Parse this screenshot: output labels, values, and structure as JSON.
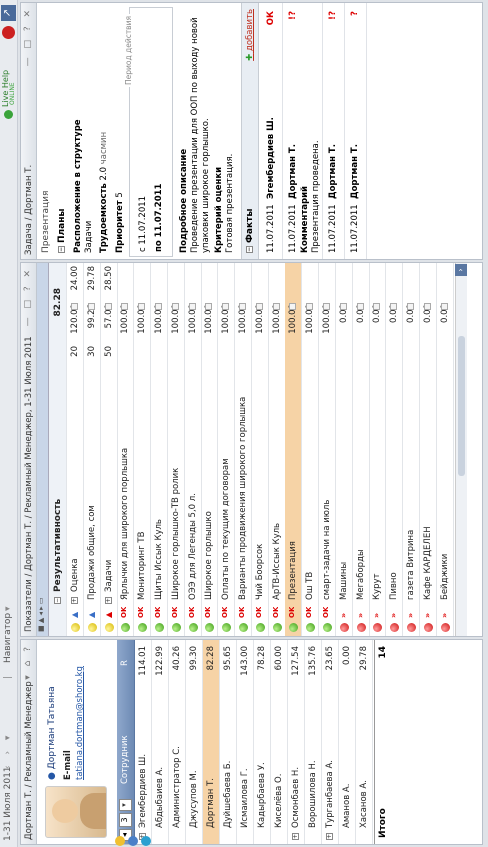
{
  "topbar": {
    "date_range": "1-31 Июля 2011",
    "nav_label": "Навигатор",
    "live_help_1": "Live Help",
    "live_help_2": "ONLINE"
  },
  "left_panel": {
    "title": "Дортман Т. / Рекламный Менеджер",
    "profile_name": "Дортман Татьяна",
    "email_label": "E-mail",
    "email": "tatiana.dortman@shoro.kg",
    "page_selector": "3",
    "col_employee": "Сотрудник",
    "col_r": "R",
    "employees": [
      {
        "name": "Эгембердиев Ш.",
        "value": "114.01",
        "exp": true
      },
      {
        "name": "Абдыбаиев А.",
        "value": "122.99",
        "exp": false
      },
      {
        "name": "Администратор С.",
        "value": "40.26",
        "exp": false
      },
      {
        "name": "Джусупов М.",
        "value": "99.30",
        "exp": false
      },
      {
        "name": "Дортман Т.",
        "value": "82.28",
        "exp": false,
        "selected": true
      },
      {
        "name": "Дуйшебаева Б.",
        "value": "95.65",
        "exp": false
      },
      {
        "name": "Исмаилова Г.",
        "value": "143.00",
        "exp": false
      },
      {
        "name": "Кадырбаева У.",
        "value": "78.28",
        "exp": false
      },
      {
        "name": "Киселёва О.",
        "value": "60.00",
        "exp": false
      },
      {
        "name": "Осмонбаев Н.",
        "value": "127.54",
        "exp": true
      },
      {
        "name": "Ворошилова Н.",
        "value": "135.76",
        "exp": false
      },
      {
        "name": "Турганбаева А.",
        "value": "23.65",
        "exp": true
      },
      {
        "name": "Аманов А.",
        "value": "0.00",
        "exp": false
      },
      {
        "name": "Хасанов А.",
        "value": "29.78",
        "exp": false
      }
    ],
    "total_label": "Итого",
    "total_value": "14"
  },
  "middle_panel": {
    "title": "Показатели / Дортман Т. / Рекламный Менеджер, 1-31 Июля 2011",
    "col_result": "Результативность",
    "col_total": "82.28",
    "rows": [
      {
        "dot": "y",
        "mark": "flag",
        "name": "Оценка",
        "n": "20",
        "v": "120.00",
        "w": "24.00",
        "exp": true
      },
      {
        "dot": "y",
        "mark": "flag",
        "name": "Продажи общие, сом",
        "n": "30",
        "v": "99.26",
        "w": "29.78",
        "exp": false
      },
      {
        "dot": "y",
        "mark": "flagr",
        "name": "Задачи",
        "n": "50",
        "v": "57.00",
        "w": "28.50",
        "exp": true
      },
      {
        "dot": "g",
        "mark": "ok",
        "name": "Ярлычки для широкого порльшка",
        "n": "",
        "v": "100.00",
        "w": "",
        "exp": false
      },
      {
        "dot": "g",
        "mark": "ok",
        "name": "Мониторинг ТВ",
        "n": "",
        "v": "100.00",
        "w": "",
        "exp": false
      },
      {
        "dot": "g",
        "mark": "ok",
        "name": "Щиты Иссык Куль",
        "n": "",
        "v": "100.00",
        "w": "",
        "exp": false
      },
      {
        "dot": "g",
        "mark": "ok",
        "name": "Широкое горлышко-ТВ ролик",
        "n": "",
        "v": "100.00",
        "w": "",
        "exp": false
      },
      {
        "dot": "g",
        "mark": "ok",
        "name": "ОЭЭ для Легенды 5,0 л.",
        "n": "",
        "v": "100.00",
        "w": "",
        "exp": false
      },
      {
        "dot": "g",
        "mark": "ok",
        "name": "Широкое горлышко",
        "n": "",
        "v": "100.00",
        "w": "",
        "exp": false
      },
      {
        "dot": "g",
        "mark": "ok",
        "name": "Оплаты по текущим договорам",
        "n": "",
        "v": "100.00",
        "w": "",
        "exp": false
      },
      {
        "dot": "g",
        "mark": "ok",
        "name": "Варианты продвижения широкого горлышка",
        "n": "",
        "v": "100.00",
        "w": "",
        "exp": false
      },
      {
        "dot": "g",
        "mark": "ok",
        "name": "Чий Боорсок",
        "n": "",
        "v": "100.00",
        "w": "",
        "exp": false
      },
      {
        "dot": "g",
        "mark": "ok",
        "name": "АрТВ-Иссык Куль",
        "n": "",
        "v": "100.00",
        "w": "",
        "exp": false
      },
      {
        "dot": "g",
        "mark": "ok",
        "name": "Презентация",
        "n": "",
        "v": "100.00",
        "w": "",
        "exp": false,
        "selected": true
      },
      {
        "dot": "g",
        "mark": "ok",
        "name": "Ош ТВ",
        "n": "",
        "v": "100.00",
        "w": "",
        "exp": false
      },
      {
        "dot": "g",
        "mark": "ok",
        "name": "смарт-задачи на июль",
        "n": "",
        "v": "100.00",
        "w": "",
        "exp": false
      },
      {
        "dot": "r",
        "mark": "ch",
        "name": "Машины",
        "n": "",
        "v": "0.00",
        "w": "",
        "exp": false
      },
      {
        "dot": "r",
        "mark": "ch",
        "name": "Мегаборды",
        "n": "",
        "v": "0.00",
        "w": "",
        "exp": false
      },
      {
        "dot": "r",
        "mark": "ch",
        "name": "Курут",
        "n": "",
        "v": "0.00",
        "w": "",
        "exp": false
      },
      {
        "dot": "r",
        "mark": "ch",
        "name": "Пивно",
        "n": "",
        "v": "0.00",
        "w": "",
        "exp": false
      },
      {
        "dot": "r",
        "mark": "ch",
        "name": "газета Витрина",
        "n": "",
        "v": "0.00",
        "w": "",
        "exp": false
      },
      {
        "dot": "r",
        "mark": "ch",
        "name": "Кафе КАРДЕЛЕН",
        "n": "",
        "v": "0.00",
        "w": "",
        "exp": false
      },
      {
        "dot": "r",
        "mark": "ch",
        "name": "Бейджики",
        "n": "",
        "v": "0.00",
        "w": "",
        "exp": false
      }
    ]
  },
  "right_panel": {
    "title": "Задача / Дортман Т.",
    "header": "Презентация",
    "plans": "Планы",
    "location_label": "Расположение в структуре",
    "location_value": "Задачи",
    "labor_label": "Трудоемкость",
    "labor_value": "2.0",
    "labor_unit": "чaсмин",
    "priority_label": "Приоритет",
    "priority_value": "5",
    "period_label": "Период действия",
    "date_from": "с 11.07.2011",
    "date_to": "по 11.07.2011",
    "desc_label": "Подробное описание",
    "desc_text": "Проведение презентации для ООП по выходу новой упаковки широкое горлышко.",
    "criteria_label": "Критерий оценки",
    "criteria_text": "Готовая презентация.",
    "facts_label": "Факты",
    "add_label": "добавить",
    "facts": [
      {
        "date": "11.07.2011",
        "person": "Эгембердиев Ш.",
        "mark": "ОК",
        "comment_label": "",
        "comment": ""
      },
      {
        "date": "11.07.2011",
        "person": "Дортман Т.",
        "mark": "!?",
        "comment_label": "Комментарий",
        "comment": "Презентация проведена."
      },
      {
        "date": "11.07.2011",
        "person": "Дортман Т.",
        "mark": "!?",
        "comment_label": "",
        "comment": ""
      },
      {
        "date": "11.07.2011",
        "person": "Дортман Т.",
        "mark": "?",
        "comment_label": "",
        "comment": ""
      }
    ]
  }
}
